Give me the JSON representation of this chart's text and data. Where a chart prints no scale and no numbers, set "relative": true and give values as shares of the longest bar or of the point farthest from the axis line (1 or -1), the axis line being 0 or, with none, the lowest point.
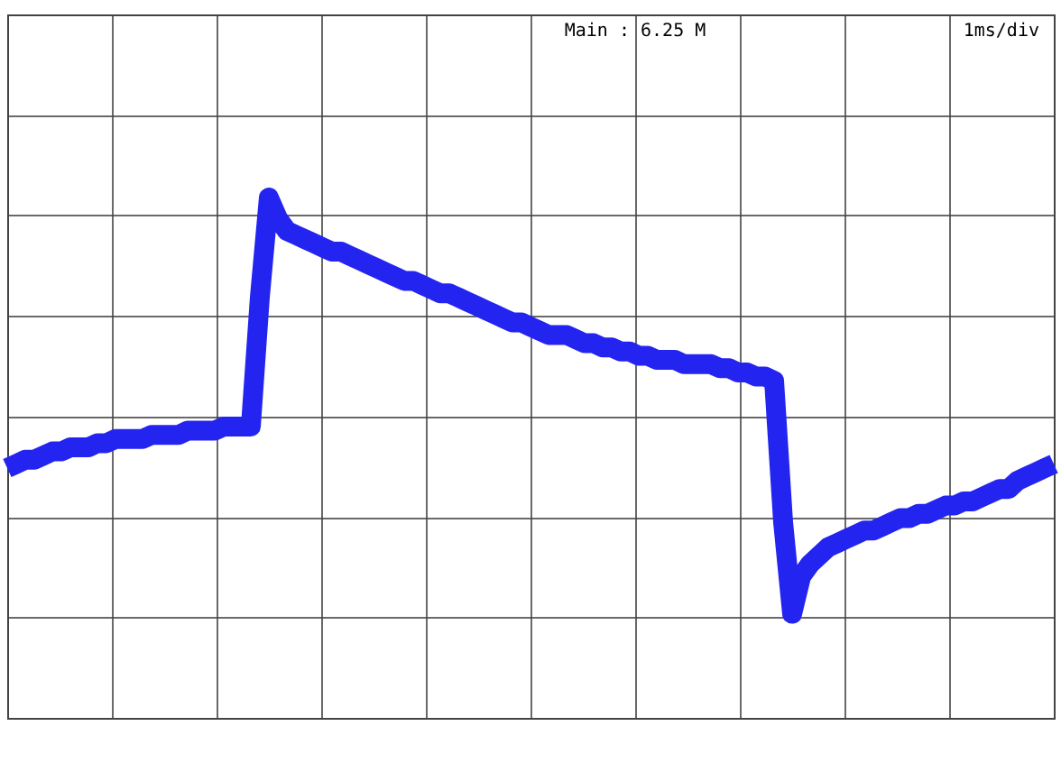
{
  "chart_data": {
    "type": "line",
    "relative": true,
    "grid": true,
    "annotations": [
      "Main : 6.25 M",
      "1ms/div"
    ],
    "categories": [
      null,
      null,
      null,
      null,
      null,
      null,
      null,
      null,
      null,
      null,
      null,
      null,
      null,
      null,
      null,
      null,
      null,
      null,
      null,
      null,
      null,
      null,
      null,
      null,
      null,
      null,
      null,
      null,
      null,
      null,
      null,
      null,
      null,
      null,
      null,
      null,
      null,
      null,
      null,
      null,
      null,
      null,
      null,
      null,
      null,
      null,
      null,
      null,
      null,
      null,
      null,
      null,
      null,
      null,
      null,
      null,
      null,
      null,
      null,
      null,
      null,
      null,
      null,
      null,
      null,
      null,
      null,
      null,
      null,
      null,
      null,
      null,
      null,
      null,
      null,
      null,
      null,
      null,
      null,
      null,
      null,
      null,
      null,
      null,
      null,
      null,
      null,
      null,
      null,
      null,
      null,
      null,
      null,
      null,
      null,
      null,
      null,
      null,
      null,
      null,
      null,
      null,
      null,
      null,
      null,
      null,
      null,
      null,
      null,
      null,
      null,
      null,
      null,
      null,
      null,
      null,
      null
    ],
    "series": [
      {
        "color": "#2424f0",
        "values": [
          0.35,
          0.36,
          0.37,
          0.37,
          0.38,
          0.39,
          0.39,
          0.4,
          0.4,
          0.4,
          0.41,
          0.41,
          0.42,
          0.42,
          0.42,
          0.42,
          0.43,
          0.43,
          0.43,
          0.43,
          0.44,
          0.44,
          0.44,
          0.44,
          0.45,
          0.45,
          0.45,
          0.45,
          0.76,
          1,
          0.95,
          0.92,
          0.91,
          0.9,
          0.89,
          0.88,
          0.87,
          0.87,
          0.86,
          0.85,
          0.84,
          0.83,
          0.82,
          0.81,
          0.8,
          0.8,
          0.79,
          0.78,
          0.77,
          0.77,
          0.76,
          0.75,
          0.74,
          0.73,
          0.72,
          0.71,
          0.7,
          0.7,
          0.69,
          0.68,
          0.67,
          0.67,
          0.67,
          0.66,
          0.65,
          0.65,
          0.64,
          0.64,
          0.63,
          0.63,
          0.62,
          0.62,
          0.61,
          0.61,
          0.61,
          0.6,
          0.6,
          0.6,
          0.6,
          0.59,
          0.59,
          0.58,
          0.58,
          0.57,
          0.57,
          0.56,
          0.22,
          0,
          0.09,
          0.12,
          0.14,
          0.16,
          0.17,
          0.18,
          0.19,
          0.2,
          0.2,
          0.21,
          0.22,
          0.23,
          0.23,
          0.24,
          0.24,
          0.25,
          0.26,
          0.26,
          0.27,
          0.27,
          0.28,
          0.29,
          0.3,
          0.3,
          0.32,
          0.33,
          0.34,
          0.35,
          0.36
        ]
      }
    ]
  }
}
